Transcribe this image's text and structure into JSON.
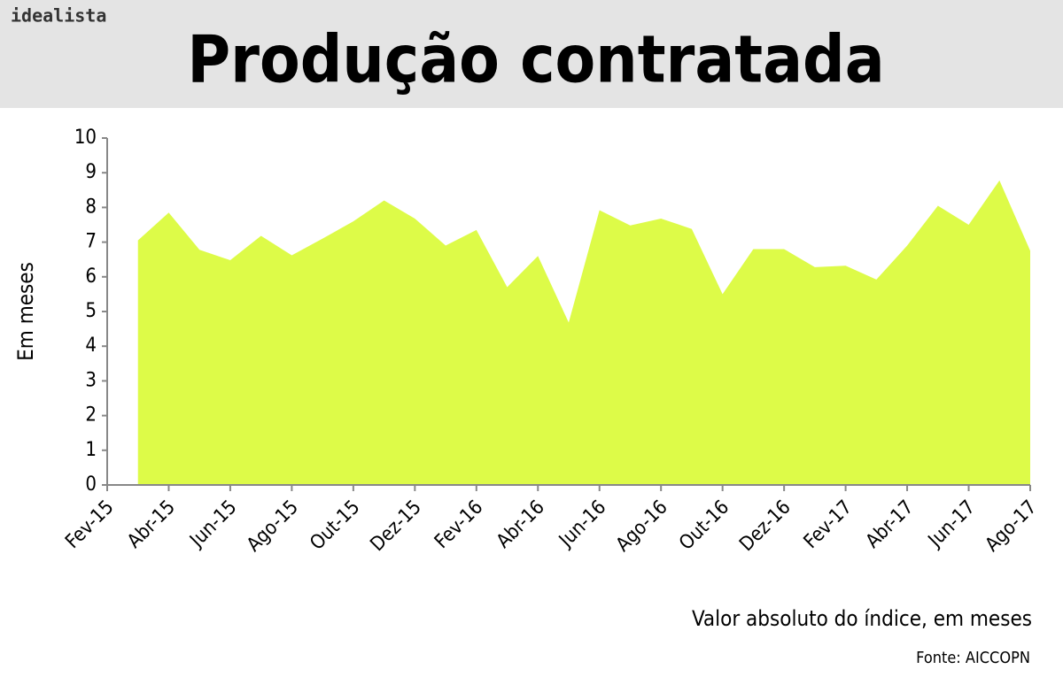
{
  "brand": "idealista",
  "chart_data": {
    "type": "area",
    "title": "Produção contratada",
    "y_label": "Em meses",
    "note": "Valor absoluto do índice, em meses",
    "source": "Fonte: AICCOPN",
    "color": "#ddfb48",
    "categories": [
      "Fev-15",
      null,
      "Abr-15",
      null,
      "Jun-15",
      null,
      "Ago-15",
      null,
      "Out-15",
      null,
      "Dez-15",
      null,
      "Fev-16",
      null,
      "Abr-16",
      null,
      "Jun-16",
      null,
      "Ago-16",
      null,
      "Out-16",
      null,
      "Dez-16",
      null,
      "Fev-17",
      null,
      "Abr-17",
      null,
      "Jun-17",
      null,
      "Ago-17"
    ],
    "values": [
      null,
      7.05,
      7.85,
      6.78,
      6.48,
      7.18,
      6.62,
      7.1,
      7.6,
      8.2,
      7.68,
      6.9,
      7.35,
      5.7,
      6.6,
      4.68,
      7.92,
      7.48,
      7.68,
      7.38,
      5.5,
      6.8,
      6.8,
      6.28,
      6.32,
      5.92,
      6.9,
      8.05,
      7.5,
      8.78,
      6.75
    ],
    "ylim": [
      0,
      10
    ],
    "yticks": [
      0,
      1,
      2,
      3,
      4,
      5,
      6,
      7,
      8,
      9,
      10
    ]
  }
}
